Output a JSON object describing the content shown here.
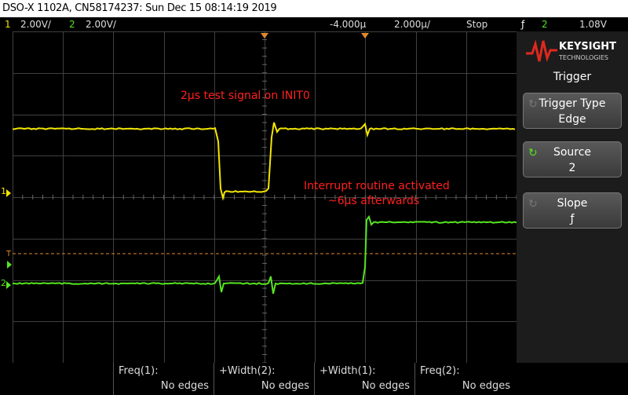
{
  "titlebar": {
    "text": "DSO-X 1102A, CN58174237: Sun Dec 15 08:14:19 2019"
  },
  "status": {
    "ch1_num": "1",
    "ch1_scale": "2.00V/",
    "ch2_num": "2",
    "ch2_scale": "2.00V/",
    "time_offset": "-4.000µ",
    "time_scale": "2.000µ/",
    "run_state": "Stop",
    "trig_icon": "ƒ",
    "trig_ch": "2",
    "trig_level": "1.08V"
  },
  "panel": {
    "brand_top": "KEYSIGHT",
    "brand_bottom": "TECHNOLOGIES",
    "title": "Trigger",
    "keys": [
      {
        "label": "Trigger Type",
        "value": "Edge"
      },
      {
        "label": "Source",
        "value": "2"
      },
      {
        "label": "Slope",
        "value": "ƒ"
      }
    ]
  },
  "screen": {
    "annotation1": "2μs test signal on INIT0",
    "annotation2_line1": "Interrupt routine activated",
    "annotation2_line2": "~6μs afterwards",
    "ch1_marker": "1",
    "ch2_marker": "2",
    "trig_marker": "T"
  },
  "measurements": [
    {
      "label": "Freq(1):",
      "value": "No edges"
    },
    {
      "label": "+Width(2):",
      "value": "No edges"
    },
    {
      "label": "+Width(1):",
      "value": "No edges"
    },
    {
      "label": "Freq(2):",
      "value": "No edges"
    }
  ],
  "colors": {
    "ch1": "#f3e600",
    "ch2": "#55e51f",
    "annotation": "#ff2020",
    "trigger_level": "#e08a2c"
  }
}
